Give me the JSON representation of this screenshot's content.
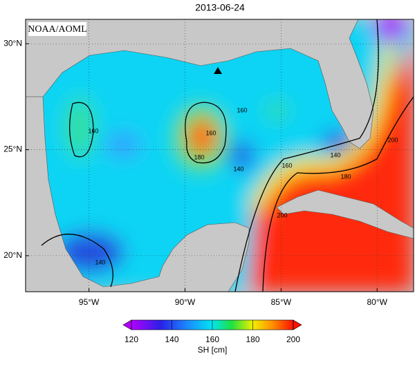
{
  "title": "2013-06-24",
  "credit": "NOAA/AOML",
  "map": {
    "lon_range": [
      -98.3,
      -78.1
    ],
    "lat_range": [
      18.3,
      31.15
    ],
    "lon_ticks": [
      {
        "value": -95,
        "label": "95°W"
      },
      {
        "value": -90,
        "label": "90°W"
      },
      {
        "value": -85,
        "label": "85°W"
      },
      {
        "value": -80,
        "label": "80°W"
      }
    ],
    "lat_ticks": [
      {
        "value": 30,
        "label": "30°N"
      },
      {
        "value": 25,
        "label": "25°N"
      },
      {
        "value": 20,
        "label": "20°N"
      }
    ],
    "contour_labels": [
      "160",
      "160",
      "160",
      "160",
      "180",
      "180",
      "140",
      "140",
      "140",
      "200",
      "200"
    ]
  },
  "colorbar": {
    "label": "SH [cm]",
    "range": [
      120,
      200
    ],
    "ticks": [
      120,
      140,
      160,
      180,
      200
    ]
  }
}
